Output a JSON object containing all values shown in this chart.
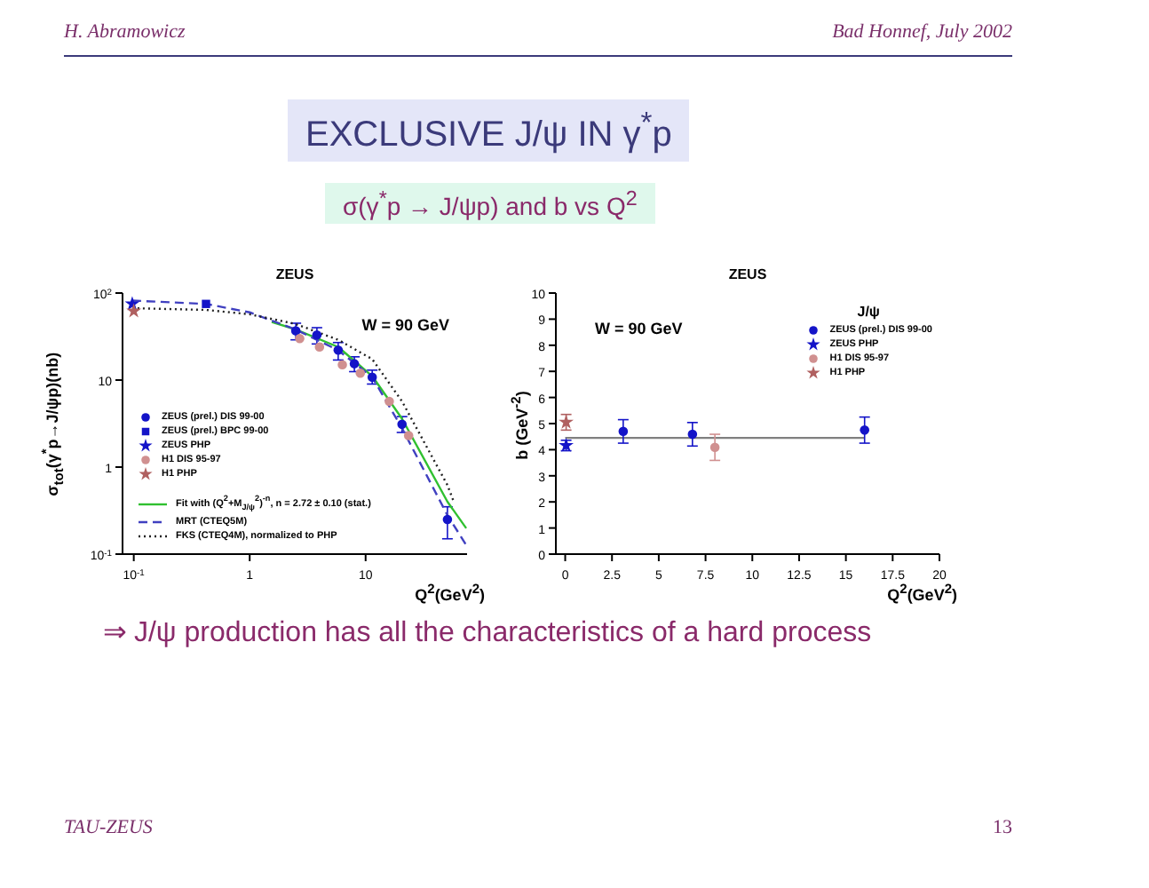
{
  "chart_data": [
    {
      "type": "other",
      "title": "EXCLUSIVE J/ψ IN γ$^{*}$p",
      "subtitle": "σ(γ$^{*}$p → J/ψp) and b vs Q$^{2}$",
      "annotations": [
        "H. Abramowicz",
        "Bad Honnef, July 2002",
        "⇒ J/ψ production has all the characteristics of a hard process",
        "TAU-ZEUS",
        "13"
      ]
    },
    {
      "type": "scatter",
      "title": "ZEUS",
      "xlabel": "Q$^{2}$(GeV$^{2}$)",
      "ylabel": "σ$_{tot}$(γ$^{*}$p→J/ψp)(nb)",
      "log": "xy",
      "xlim": [
        0.08,
        75
      ],
      "ylim": [
        0.1,
        100
      ],
      "xticks": [
        {
          "value": 0.1,
          "label": "10$^{-1}$"
        },
        1,
        10
      ],
      "yticks": [
        {
          "value": 0.1,
          "label": "10$^{-1}$"
        },
        1,
        10,
        {
          "value": 100,
          "label": "10$^{2}$"
        }
      ],
      "legend": "bottom left",
      "annotations": [
        "W = 90 GeV"
      ],
      "series": [
        {
          "name": "ZEUS (prel.) DIS 99-00",
          "color": "#1414c8",
          "marker": "circle",
          "x": [
            2.5,
            3.8,
            5.8,
            8.0,
            11.4,
            20.6,
            50.8
          ],
          "values": [
            36.8,
            32.9,
            22.1,
            15.4,
            10.8,
            3.1,
            0.25
          ],
          "errors": [
            [
              29,
              45
            ],
            [
              26,
              40
            ],
            [
              17,
              27
            ],
            [
              12.5,
              18.5
            ],
            [
              9,
              13
            ],
            [
              2.5,
              3.8
            ],
            [
              0.15,
              0.35
            ]
          ]
        },
        {
          "name": "ZEUS (prel.) BPC 99-00",
          "color": "#1414c8",
          "marker": "square",
          "x": [
            0.42
          ],
          "values": [
            75
          ]
        },
        {
          "name": "ZEUS PHP",
          "color": "#1414c8",
          "marker": "star",
          "x": [
            0.097
          ],
          "values": [
            75
          ]
        },
        {
          "name": "H1 DIS 95-97",
          "color": "#d09090",
          "marker": "circle",
          "x": [
            2.7,
            4.0,
            6.3,
            9.0,
            16,
            23.5
          ],
          "values": [
            30,
            24,
            15,
            12,
            5.7,
            2.3
          ]
        },
        {
          "name": "H1 PHP",
          "color": "#b06060",
          "marker": "star",
          "x": [
            0.1
          ],
          "values": [
            62
          ]
        },
        {
          "type": "line",
          "name": "Fit with (Q$^{2}$+M$_{J/ψ}$$^{2}$)$^{-n}$, n = 2.72 ± 0.10 (stat.)",
          "color": "#30c030",
          "line_style": "solid",
          "x": [
            1.55,
            2.5,
            5.8,
            11.4,
            20.6,
            50.8,
            73.8
          ],
          "values": [
            46.6,
            38,
            24,
            11.1,
            3.6,
            0.4,
            0.198
          ]
        },
        {
          "type": "line",
          "name": "MRT (CTEQ5M)",
          "color": "#4040c0",
          "line_style": "dashed",
          "x": [
            0.097,
            0.42,
            1,
            2.5,
            5.8,
            11.4,
            20.6,
            50.8,
            73.8
          ],
          "values": [
            82,
            75,
            60,
            38,
            22,
            10.8,
            2.8,
            0.28,
            0.127
          ]
        },
        {
          "type": "line",
          "name": "FKS (CTEQ4M), normalized to PHP",
          "color": "#202020",
          "line_style": "dotted",
          "x": [
            0.097,
            0.42,
            1,
            2.5,
            5.8,
            11.4,
            20.6,
            50.8,
            58
          ],
          "values": [
            67,
            64,
            57,
            44,
            29,
            17.4,
            5.7,
            0.62,
            0.39
          ]
        }
      ]
    },
    {
      "type": "scatter",
      "title": "ZEUS",
      "xlabel": "Q$^{2}$(GeV$^{2}$)",
      "ylabel": "b (GeV$^{-2}$)",
      "xlim": [
        -0.5,
        20
      ],
      "ylim": [
        0,
        10
      ],
      "xticks": [
        0,
        2.5,
        5,
        7.5,
        10,
        12.5,
        15,
        17.5,
        20
      ],
      "yticks": [
        0,
        1,
        2,
        3,
        4,
        5,
        6,
        7,
        8,
        9,
        10
      ],
      "legend": "top right",
      "legend_title": "J/ψ",
      "annotations": [
        "W = 90 GeV"
      ],
      "series": [
        {
          "type": "line",
          "color": "#808080",
          "line_style": "solid",
          "x": [
            0,
            16
          ],
          "values": [
            4.45,
            4.45
          ]
        },
        {
          "name": "ZEUS (prel.) DIS 99-00",
          "color": "#1414c8",
          "marker": "circle",
          "x": [
            3.1,
            6.8,
            16
          ],
          "values": [
            4.7,
            4.59,
            4.75
          ],
          "errors": [
            0.45,
            0.45,
            0.5
          ]
        },
        {
          "name": "ZEUS PHP",
          "color": "#1414c8",
          "marker": "star",
          "x": [
            0.05
          ],
          "values": [
            4.16
          ],
          "errors": [
            0.2
          ]
        },
        {
          "name": "H1 DIS 95-97",
          "color": "#d09090",
          "marker": "circle",
          "x": [
            8.0
          ],
          "values": [
            4.09
          ],
          "errors": [
            0.5
          ]
        },
        {
          "name": "H1 PHP",
          "color": "#b06060",
          "marker": "star",
          "x": [
            0.05
          ],
          "values": [
            5.05
          ],
          "errors": [
            0.3
          ]
        }
      ]
    }
  ]
}
